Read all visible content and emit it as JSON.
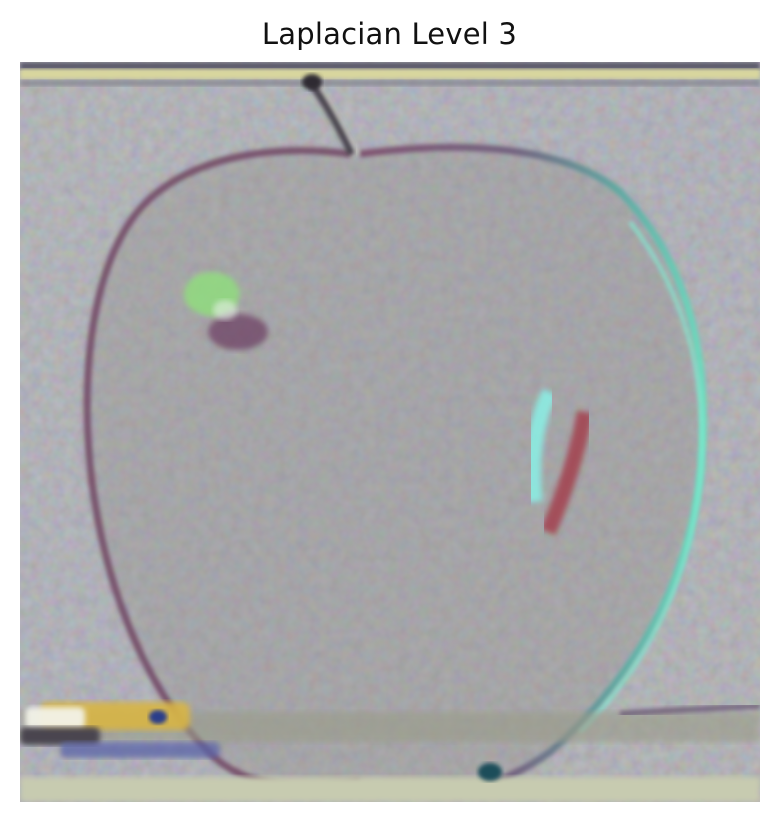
{
  "title": "Laplacian Level 3",
  "image": {
    "subject": "apple",
    "palette": {
      "background": "#8f9190",
      "top_edge": "#d6d49a",
      "bottom_edge": "#c8ccae",
      "outline_left": "#7a4f6a",
      "outline_right": "#5fd9b8",
      "highlight_green": "#8ee07a",
      "highlight_cyan": "#7ff0e6",
      "highlight_red": "#a3424f"
    }
  }
}
